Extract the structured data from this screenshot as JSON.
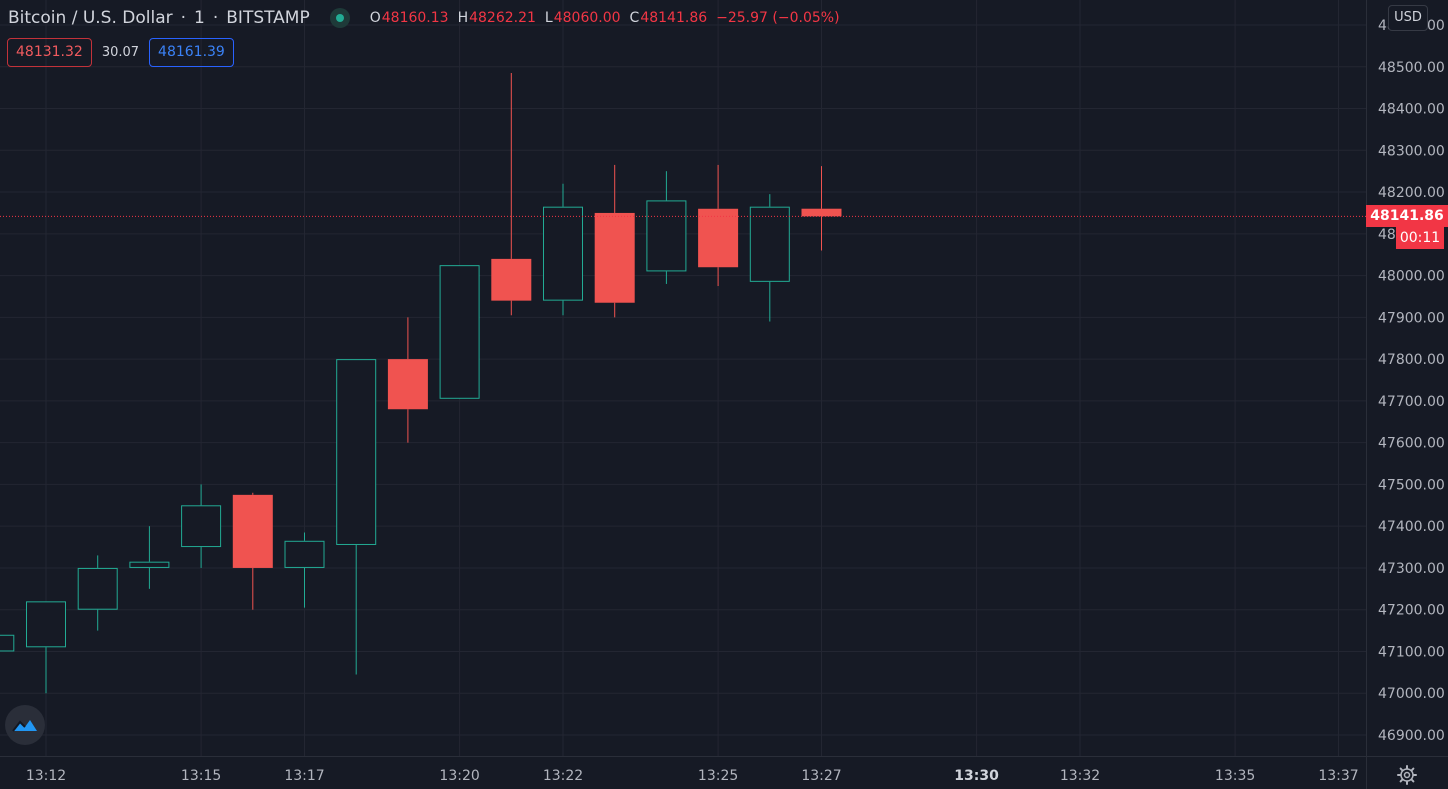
{
  "header": {
    "symbol": "Bitcoin / U.S. Dollar",
    "separator": "·",
    "interval": "1",
    "exchange": "BITSTAMP",
    "status_icon": "market-open-dot",
    "ohlc": {
      "open_label": "O",
      "open": "48160.13",
      "high_label": "H",
      "high": "48262.21",
      "low_label": "L",
      "low": "48060.00",
      "close_label": "C",
      "close": "48141.86",
      "change": "−25.97 (−0.05%)"
    }
  },
  "quote": {
    "bid": "48131.32",
    "spread": "30.07",
    "ask": "48161.39"
  },
  "currency": "USD",
  "last_price": {
    "value": "48141.86",
    "countdown": "00:11",
    "color": "#f23645"
  },
  "colors": {
    "up": "#22ab94",
    "down": "#f05350",
    "background": "#161a25",
    "grid": "#232632"
  },
  "icons": {
    "logo": "tradingview-logo-icon",
    "settings": "gear-icon"
  },
  "chart_data": {
    "type": "candlestick",
    "x_tick_labels": [
      "13:12",
      "13:15",
      "13:17",
      "13:20",
      "13:22",
      "13:25",
      "13:27",
      "13:30",
      "13:32",
      "13:35",
      "13:37"
    ],
    "x_bold_labels": [
      "13:30"
    ],
    "y_tick_labels": [
      "46900.00",
      "47000.00",
      "47100.00",
      "47200.00",
      "47300.00",
      "47400.00",
      "47500.00",
      "47600.00",
      "47700.00",
      "47800.00",
      "47900.00",
      "48000.00",
      "48100.00",
      "48200.00",
      "48300.00",
      "48400.00",
      "48500.00",
      "48600.00"
    ],
    "ylim": [
      46900,
      48600
    ],
    "xlim": [
      "13:11",
      "13:37"
    ],
    "grid": true,
    "candles": [
      {
        "time": "13:11",
        "open": 47100,
        "high": 47140,
        "low": 47060,
        "close": 47140
      },
      {
        "time": "13:12",
        "open": 47110,
        "high": 47220,
        "low": 47000,
        "close": 47220
      },
      {
        "time": "13:13",
        "open": 47200,
        "high": 47330,
        "low": 47150,
        "close": 47300
      },
      {
        "time": "13:14",
        "open": 47300,
        "high": 47400,
        "low": 47250,
        "close": 47315
      },
      {
        "time": "13:15",
        "open": 47350,
        "high": 47500,
        "low": 47300,
        "close": 47450
      },
      {
        "time": "13:16",
        "open": 47475,
        "high": 47480,
        "low": 47200,
        "close": 47300
      },
      {
        "time": "13:17",
        "open": 47300,
        "high": 47385,
        "low": 47205,
        "close": 47365
      },
      {
        "time": "13:18",
        "open": 47355,
        "high": 47800,
        "low": 47045,
        "close": 47800
      },
      {
        "time": "13:19",
        "open": 47800,
        "high": 47900,
        "low": 47600,
        "close": 47680
      },
      {
        "time": "13:20",
        "open": 47705,
        "high": 48025,
        "low": 47705,
        "close": 48025
      },
      {
        "time": "13:21",
        "open": 48040,
        "high": 48485,
        "low": 47905,
        "close": 47940
      },
      {
        "time": "13:22",
        "open": 47940,
        "high": 48220,
        "low": 47905,
        "close": 48165
      },
      {
        "time": "13:23",
        "open": 48150,
        "high": 48265,
        "low": 47900,
        "close": 47935
      },
      {
        "time": "13:24",
        "open": 48010,
        "high": 48250,
        "low": 47980,
        "close": 48180
      },
      {
        "time": "13:25",
        "open": 48160,
        "high": 48265,
        "low": 47975,
        "close": 48020
      },
      {
        "time": "13:26",
        "open": 47985,
        "high": 48195,
        "low": 47890,
        "close": 48165
      },
      {
        "time": "13:27",
        "open": 48160.13,
        "high": 48262.21,
        "low": 48060,
        "close": 48141.86
      }
    ]
  }
}
